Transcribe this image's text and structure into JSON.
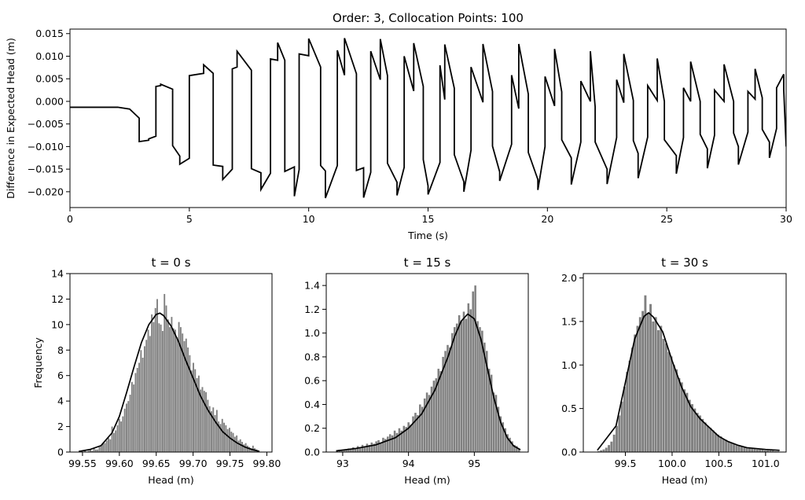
{
  "chart_data": [
    {
      "type": "line",
      "title": "Order: 3, Collocation Points: 100",
      "xlabel": "Time (s)",
      "ylabel": "Difference in Expected Head (m)",
      "xlim": [
        0,
        30
      ],
      "ylim": [
        -0.0235,
        0.016
      ],
      "xticks": [
        0,
        5,
        10,
        15,
        20,
        25,
        30
      ],
      "yticks": [
        -0.02,
        -0.015,
        -0.01,
        -0.005,
        0.0,
        0.005,
        0.01,
        0.015
      ],
      "ytick_labels": [
        "−0.020",
        "−0.015",
        "−0.010",
        "−0.005",
        "0.000",
        "0.005",
        "0.010",
        "0.015"
      ],
      "color": "#000000",
      "x": [
        0,
        2.0,
        2.5,
        2.9,
        2.9,
        3.3,
        3.3,
        3.6,
        3.6,
        3.8,
        3.8,
        4.3,
        4.3,
        4.6,
        4.6,
        5.0,
        5.0,
        5.6,
        5.6,
        6.0,
        6.0,
        6.4,
        6.4,
        6.8,
        6.8,
        7.0,
        7.0,
        7.6,
        7.6,
        8.0,
        8.0,
        8.4,
        8.4,
        8.7,
        8.7,
        9.0,
        9.0,
        9.4,
        9.4,
        9.6,
        9.6,
        10.0,
        10.0,
        10.5,
        10.5,
        10.7,
        10.7,
        11.2,
        11.2,
        11.5,
        11.5,
        12.0,
        12.0,
        12.3,
        12.3,
        12.6,
        12.6,
        13.0,
        13.0,
        13.3,
        13.3,
        13.7,
        13.7,
        14.0,
        14.0,
        14.4,
        14.4,
        14.8,
        14.8,
        15.0,
        15.0,
        15.5,
        15.5,
        15.7,
        15.7,
        16.1,
        16.1,
        16.5,
        16.5,
        16.8,
        16.8,
        17.3,
        17.3,
        17.7,
        17.7,
        18.0,
        18.0,
        18.5,
        18.5,
        18.8,
        18.8,
        19.2,
        19.2,
        19.6,
        19.6,
        19.9,
        19.9,
        20.3,
        20.3,
        20.6,
        20.6,
        21.0,
        21.0,
        21.4,
        21.4,
        21.8,
        21.8,
        22.0,
        22.0,
        22.5,
        22.5,
        22.9,
        22.9,
        23.2,
        23.2,
        23.6,
        23.6,
        23.8,
        23.8,
        24.2,
        24.2,
        24.6,
        24.6,
        24.9,
        24.9,
        25.4,
        25.4,
        25.7,
        25.7,
        26.0,
        26.0,
        26.4,
        26.4,
        26.7,
        26.7,
        27.0,
        27.0,
        27.4,
        27.4,
        27.8,
        27.8,
        28.0,
        28.0,
        28.4,
        28.4,
        28.7,
        28.7,
        29.0,
        29.0,
        29.3,
        29.3,
        29.6,
        29.6,
        29.9,
        29.9,
        30.0
      ],
      "y": [
        -0.0013,
        -0.0013,
        -0.0017,
        -0.0037,
        -0.0089,
        -0.0086,
        -0.0083,
        -0.0077,
        0.0033,
        0.0035,
        0.0038,
        0.0027,
        -0.0098,
        -0.0121,
        -0.0139,
        -0.0126,
        0.0057,
        0.0062,
        0.0081,
        0.0062,
        -0.0141,
        -0.0144,
        -0.0173,
        -0.015,
        0.0072,
        0.0076,
        0.0111,
        0.0069,
        -0.0149,
        -0.0158,
        -0.0195,
        -0.0159,
        0.0094,
        0.0091,
        0.013,
        0.0091,
        -0.0155,
        -0.0145,
        -0.021,
        -0.0151,
        0.0105,
        0.0101,
        0.0139,
        0.0076,
        -0.0142,
        -0.0154,
        -0.0214,
        -0.0142,
        0.0113,
        0.0058,
        0.014,
        0.0061,
        -0.0153,
        -0.0147,
        -0.0213,
        -0.0157,
        0.0111,
        0.0048,
        0.0138,
        0.0057,
        -0.0137,
        -0.0179,
        -0.0208,
        -0.0146,
        0.01,
        0.0023,
        0.0129,
        0.0033,
        -0.0129,
        -0.0187,
        -0.0206,
        -0.0135,
        0.008,
        0.0004,
        0.0126,
        0.0029,
        -0.0118,
        -0.0178,
        -0.02,
        -0.0108,
        0.0076,
        -0.0002,
        0.0127,
        0.0022,
        -0.0099,
        -0.0156,
        -0.0176,
        -0.0095,
        0.0058,
        -0.0016,
        0.0127,
        0.0016,
        -0.0113,
        -0.0173,
        -0.0196,
        -0.01,
        0.0055,
        -0.001,
        0.0116,
        0.0021,
        -0.0085,
        -0.0125,
        -0.0184,
        -0.009,
        0.0045,
        0.0,
        0.0111,
        -0.0012,
        -0.009,
        -0.015,
        -0.0183,
        -0.008,
        0.0048,
        -0.0003,
        0.0105,
        0.0002,
        -0.0087,
        -0.0115,
        -0.017,
        -0.0079,
        0.0035,
        0.0002,
        0.0095,
        0.0,
        -0.0085,
        -0.012,
        -0.016,
        -0.008,
        0.003,
        0.0,
        0.0088,
        0.0,
        -0.0073,
        -0.0105,
        -0.0148,
        -0.0075,
        0.0025,
        0.0,
        0.0082,
        0.0,
        -0.007,
        -0.01,
        -0.014,
        -0.0068,
        0.0022,
        0.0005,
        0.0072,
        0.0008,
        -0.0062,
        -0.009,
        -0.0125,
        -0.006,
        0.003,
        0.006,
        0.0025,
        -0.01
      ]
    },
    {
      "type": "histogram",
      "title": "t = 0 s",
      "xlabel": "Head (m)",
      "ylabel": "Frequency",
      "xlim": [
        99.533,
        99.807
      ],
      "ylim": [
        0,
        14
      ],
      "xticks": [
        99.55,
        99.6,
        99.65,
        99.7,
        99.75,
        99.8
      ],
      "xtick_labels": [
        "99.55",
        "99.60",
        "99.65",
        "99.70",
        "99.75",
        "99.80"
      ],
      "yticks": [
        0,
        2,
        4,
        6,
        8,
        10,
        12,
        14
      ],
      "ytick_labels": [
        "0",
        "2",
        "4",
        "6",
        "8",
        "10",
        "12",
        "14"
      ],
      "bar_color": "#808080",
      "curve_color": "#000000",
      "bin_range": [
        99.545,
        99.79
      ],
      "counts": [
        0.1,
        0.0,
        0.0,
        0.1,
        0.0,
        0.1,
        0.2,
        0.1,
        0.3,
        0.2,
        0.2,
        0.4,
        0.5,
        0.7,
        0.7,
        0.9,
        1.1,
        1.0,
        2.0,
        1.5,
        1.7,
        2.1,
        2.6,
        2.4,
        2.8,
        3.4,
        3.8,
        4.0,
        4.5,
        5.5,
        5.3,
        6.2,
        6.6,
        7.0,
        8.0,
        7.4,
        8.3,
        8.8,
        9.6,
        9.1,
        10.8,
        10.2,
        11.3,
        12.0,
        10.1,
        10.0,
        9.5,
        12.4,
        11.5,
        10.4,
        9.8,
        10.6,
        9.7,
        9.6,
        9.0,
        10.2,
        9.8,
        9.3,
        8.7,
        8.9,
        8.2,
        7.6,
        6.4,
        7.0,
        6.5,
        5.8,
        6.0,
        4.9,
        5.1,
        4.8,
        4.7,
        4.1,
        3.6,
        3.2,
        3.5,
        2.9,
        3.3,
        2.4,
        2.2,
        2.6,
        2.3,
        2.1,
        1.8,
        1.9,
        1.6,
        1.5,
        1.2,
        1.3,
        0.9,
        1.0,
        0.8,
        0.6,
        0.7,
        0.5,
        0.4,
        0.3,
        0.5,
        0.3,
        0.2,
        0.1
      ],
      "curve_x": [
        99.545,
        99.56,
        99.575,
        99.59,
        99.6,
        99.61,
        99.62,
        99.63,
        99.64,
        99.65,
        99.655,
        99.66,
        99.67,
        99.68,
        99.69,
        99.7,
        99.71,
        99.72,
        99.73,
        99.74,
        99.75,
        99.76,
        99.77,
        99.78,
        99.79
      ],
      "curve_y": [
        0.05,
        0.2,
        0.5,
        1.5,
        2.8,
        4.7,
        6.7,
        8.6,
        10.0,
        10.8,
        10.9,
        10.7,
        9.9,
        8.7,
        7.2,
        5.8,
        4.4,
        3.3,
        2.4,
        1.6,
        1.1,
        0.7,
        0.4,
        0.2,
        0.05
      ]
    },
    {
      "type": "histogram",
      "title": "t = 15 s",
      "xlabel": "Head (m)",
      "ylabel": "",
      "xlim": [
        92.75,
        95.82
      ],
      "ylim": [
        0,
        1.5
      ],
      "xticks": [
        93,
        94,
        95
      ],
      "xtick_labels": [
        "93",
        "94",
        "95"
      ],
      "yticks": [
        0.0,
        0.2,
        0.4,
        0.6,
        0.8,
        1.0,
        1.2,
        1.4
      ],
      "ytick_labels": [
        "0.0",
        "0.2",
        "0.4",
        "0.6",
        "0.8",
        "1.0",
        "1.2",
        "1.4"
      ],
      "bar_color": "#808080",
      "curve_color": "#000000",
      "bin_range": [
        92.9,
        95.7
      ],
      "counts": [
        0.01,
        0.02,
        0.01,
        0.02,
        0.02,
        0.03,
        0.02,
        0.04,
        0.03,
        0.05,
        0.04,
        0.06,
        0.05,
        0.07,
        0.06,
        0.08,
        0.07,
        0.09,
        0.1,
        0.08,
        0.12,
        0.11,
        0.13,
        0.15,
        0.14,
        0.18,
        0.16,
        0.2,
        0.18,
        0.22,
        0.21,
        0.25,
        0.23,
        0.3,
        0.33,
        0.31,
        0.4,
        0.38,
        0.45,
        0.5,
        0.48,
        0.55,
        0.6,
        0.62,
        0.7,
        0.68,
        0.8,
        0.85,
        0.9,
        0.88,
        1.0,
        1.05,
        1.08,
        1.15,
        1.1,
        1.18,
        1.12,
        1.25,
        1.2,
        1.35,
        1.4,
        1.1,
        1.05,
        1.02,
        0.92,
        0.85,
        0.7,
        0.65,
        0.5,
        0.48,
        0.38,
        0.3,
        0.25,
        0.2,
        0.15,
        0.12,
        0.09,
        0.06,
        0.05,
        0.03
      ],
      "curve_x": [
        92.9,
        93.2,
        93.5,
        93.8,
        94.0,
        94.2,
        94.4,
        94.6,
        94.7,
        94.8,
        94.9,
        95.0,
        95.1,
        95.2,
        95.3,
        95.4,
        95.5,
        95.6,
        95.7
      ],
      "curve_y": [
        0.01,
        0.03,
        0.06,
        0.12,
        0.2,
        0.32,
        0.52,
        0.8,
        0.97,
        1.1,
        1.16,
        1.12,
        0.95,
        0.7,
        0.45,
        0.25,
        0.12,
        0.05,
        0.02
      ]
    },
    {
      "type": "histogram",
      "title": "t = 30 s",
      "xlabel": "Head (m)",
      "ylabel": "",
      "xlim": [
        9.0,
        101.22
      ],
      "ylim": [
        0,
        2.05
      ],
      "xticks": [
        99.5,
        100.0,
        100.5,
        101.0
      ],
      "xtick_labels": [
        "99.5",
        "100.0",
        "100.5",
        "101.0"
      ],
      "yticks": [
        0.0,
        0.5,
        1.0,
        1.5,
        2.0
      ],
      "ytick_labels": [
        "0.0",
        "0.5",
        "1.0",
        "1.5",
        "2.0"
      ],
      "bar_color": "#808080",
      "curve_color": "#000000",
      "bin_range": [
        99.2,
        101.15
      ],
      "counts": [
        0.01,
        0.02,
        0.03,
        0.05,
        0.08,
        0.12,
        0.2,
        0.3,
        0.42,
        0.58,
        0.75,
        0.92,
        1.05,
        1.2,
        1.35,
        1.45,
        1.55,
        1.62,
        1.8,
        1.6,
        1.7,
        1.5,
        1.55,
        1.4,
        1.45,
        1.3,
        1.25,
        1.15,
        1.1,
        1.0,
        0.95,
        0.85,
        0.8,
        0.72,
        0.68,
        0.6,
        0.55,
        0.5,
        0.45,
        0.42,
        0.38,
        0.34,
        0.3,
        0.28,
        0.25,
        0.22,
        0.2,
        0.18,
        0.15,
        0.14,
        0.12,
        0.11,
        0.1,
        0.08,
        0.08,
        0.07,
        0.06,
        0.05,
        0.05,
        0.04,
        0.04,
        0.03,
        0.03,
        0.03,
        0.02,
        0.02,
        0.02,
        0.02,
        0.01,
        0.01
      ],
      "curve_x": [
        99.2,
        99.4,
        99.5,
        99.6,
        99.7,
        99.75,
        99.8,
        99.9,
        100.0,
        100.1,
        100.2,
        100.3,
        100.4,
        100.5,
        100.6,
        100.7,
        100.8,
        100.9,
        101.0,
        101.15
      ],
      "curve_y": [
        0.02,
        0.3,
        0.8,
        1.3,
        1.56,
        1.6,
        1.55,
        1.38,
        1.05,
        0.75,
        0.52,
        0.38,
        0.28,
        0.18,
        0.12,
        0.08,
        0.05,
        0.04,
        0.03,
        0.02
      ]
    }
  ]
}
